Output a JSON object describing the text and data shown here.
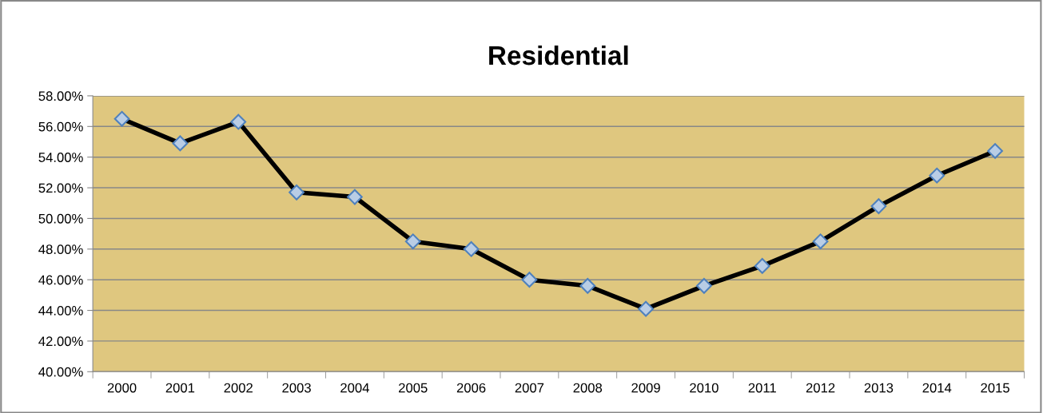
{
  "chart_data": {
    "type": "line",
    "title": "Residential",
    "categories": [
      "2000",
      "2001",
      "2002",
      "2003",
      "2004",
      "2005",
      "2006",
      "2007",
      "2008",
      "2009",
      "2010",
      "2011",
      "2012",
      "2013",
      "2014",
      "2015"
    ],
    "series": [
      {
        "color": "#000000",
        "values": [
          56.5,
          54.9,
          56.3,
          51.7,
          51.4,
          48.5,
          48.0,
          46.0,
          45.6,
          44.1,
          45.6,
          46.9,
          48.5,
          50.8,
          52.8,
          54.4
        ]
      }
    ],
    "ylim": [
      40,
      58
    ],
    "yticks": [
      {
        "value": 40,
        "label": "40.00%"
      },
      {
        "value": 42,
        "label": "42.00%"
      },
      {
        "value": 44,
        "label": "44.00%"
      },
      {
        "value": 46,
        "label": "46.00%"
      },
      {
        "value": 48,
        "label": "48.00%"
      },
      {
        "value": 50,
        "label": "50.00%"
      },
      {
        "value": 52,
        "label": "52.00%"
      },
      {
        "value": 54,
        "label": "54.00%"
      },
      {
        "value": 56,
        "label": "56.00%"
      },
      {
        "value": 58,
        "label": "58.00%"
      }
    ],
    "grid": "y",
    "marker": "diamond",
    "line_style": "solid"
  }
}
